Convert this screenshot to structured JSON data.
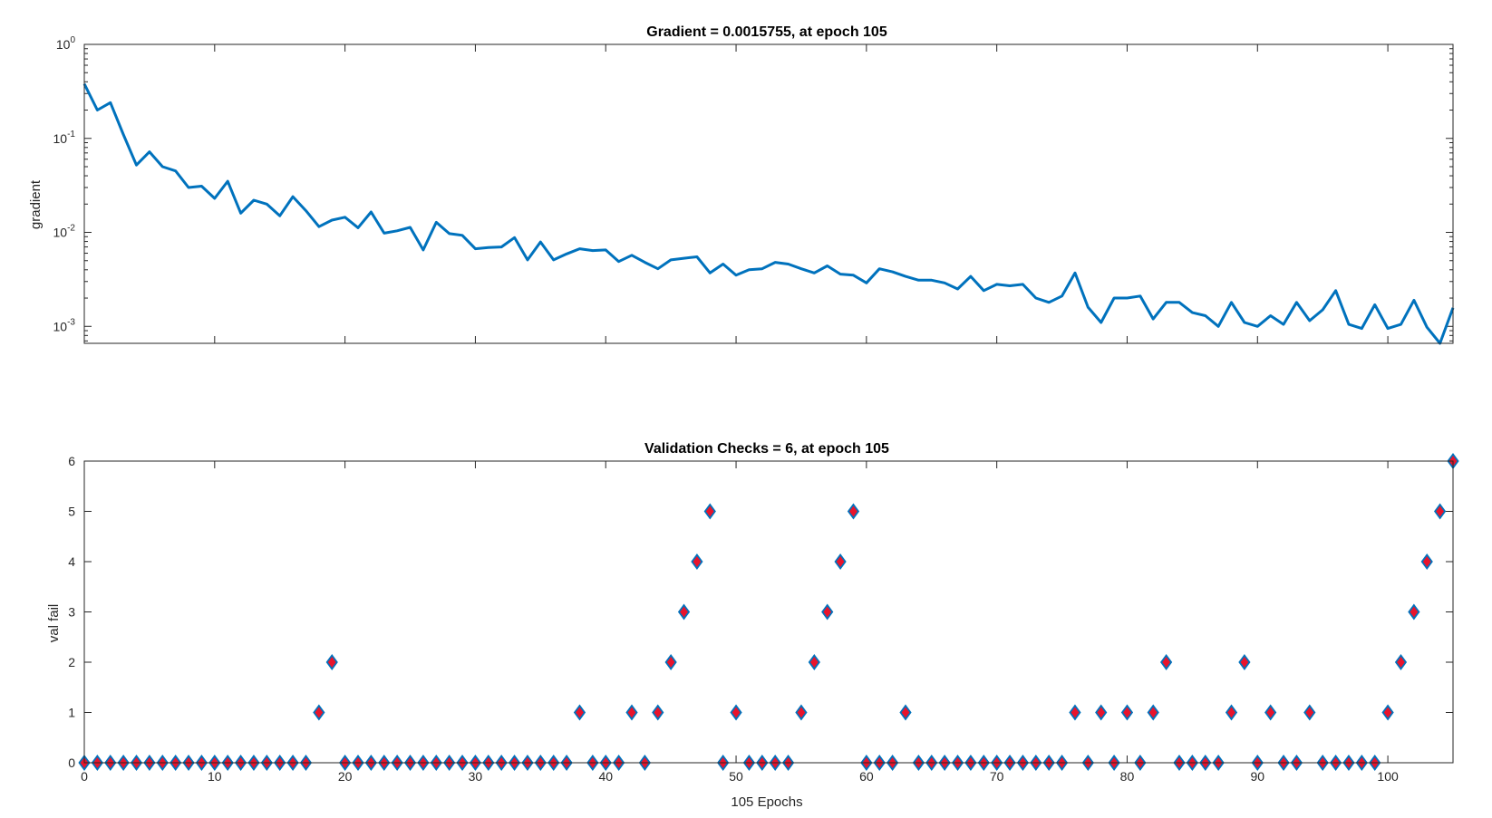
{
  "chart_data": [
    {
      "type": "line",
      "title": "Gradient = 0.0015755, at epoch 105",
      "xlabel": "",
      "ylabel": "gradient",
      "yscale": "log",
      "xlim": [
        0,
        105
      ],
      "ylim": [
        0.00066,
        1
      ],
      "ytick_labels": [
        {
          "base": "10",
          "exp": "0",
          "value": 1
        },
        {
          "base": "10",
          "exp": "-1",
          "value": 0.1
        },
        {
          "base": "10",
          "exp": "-2",
          "value": 0.01
        },
        {
          "base": "10",
          "exp": "-3",
          "value": 0.001
        }
      ],
      "line_color": "#0072BD",
      "series": [
        {
          "x": [
            0,
            1,
            2,
            3,
            4,
            5,
            6,
            7,
            8,
            9,
            10,
            11,
            12,
            13,
            14,
            15,
            16,
            17,
            18,
            19,
            20,
            21,
            22,
            23,
            24,
            25,
            26,
            27,
            28,
            29,
            30,
            31,
            32,
            33,
            34,
            35,
            36,
            37,
            38,
            39,
            40,
            41,
            42,
            43,
            44,
            45,
            46,
            47,
            48,
            49,
            50,
            51,
            52,
            53,
            54,
            55,
            56,
            57,
            58,
            59,
            60,
            61,
            62,
            63,
            64,
            65,
            66,
            67,
            68,
            69,
            70,
            71,
            72,
            73,
            74,
            75,
            76,
            77,
            78,
            79,
            80,
            81,
            82,
            83,
            84,
            85,
            86,
            87,
            88,
            89,
            90,
            91,
            92,
            93,
            94,
            95,
            96,
            97,
            98,
            99,
            100,
            101,
            102,
            103,
            104,
            105
          ],
          "values": [
            0.38,
            0.2,
            0.24,
            0.11,
            0.052,
            0.072,
            0.05,
            0.045,
            0.03,
            0.031,
            0.023,
            0.035,
            0.016,
            0.022,
            0.02,
            0.015,
            0.024,
            0.017,
            0.0115,
            0.0135,
            0.0145,
            0.0112,
            0.0165,
            0.0098,
            0.0104,
            0.0113,
            0.0065,
            0.0128,
            0.0097,
            0.0093,
            0.0067,
            0.0069,
            0.007,
            0.0088,
            0.0051,
            0.0079,
            0.0051,
            0.0059,
            0.0067,
            0.0064,
            0.0065,
            0.0049,
            0.0057,
            0.0048,
            0.0041,
            0.0051,
            0.0053,
            0.0055,
            0.0037,
            0.0046,
            0.0035,
            0.004,
            0.0041,
            0.0048,
            0.0046,
            0.0041,
            0.0037,
            0.0044,
            0.0036,
            0.0035,
            0.0029,
            0.0041,
            0.0038,
            0.0034,
            0.0031,
            0.0031,
            0.0029,
            0.0025,
            0.0034,
            0.0024,
            0.0028,
            0.0027,
            0.0028,
            0.002,
            0.0018,
            0.0021,
            0.0037,
            0.0016,
            0.0011,
            0.002,
            0.002,
            0.0021,
            0.0012,
            0.0018,
            0.0018,
            0.0014,
            0.0013,
            0.001,
            0.0018,
            0.0011,
            0.001,
            0.0013,
            0.00105,
            0.0018,
            0.00115,
            0.0015,
            0.0024,
            0.00105,
            0.00095,
            0.0017,
            0.00095,
            0.00105,
            0.0019,
            0.00098,
            0.00066,
            0.0015755
          ]
        }
      ]
    },
    {
      "type": "scatter",
      "title": "Validation Checks = 6, at epoch 105",
      "xlabel": "105 Epochs",
      "ylabel": "val fail",
      "xlim": [
        0,
        105
      ],
      "ylim": [
        0,
        6
      ],
      "xticks": [
        0,
        10,
        20,
        30,
        40,
        50,
        60,
        70,
        80,
        90,
        100
      ],
      "yticks": [
        0,
        1,
        2,
        3,
        4,
        5,
        6
      ],
      "marker": "diamond",
      "marker_fill": "#E8142C",
      "marker_edge": "#0072BD",
      "series": [
        {
          "x": [
            0,
            1,
            2,
            3,
            4,
            5,
            6,
            7,
            8,
            9,
            10,
            11,
            12,
            13,
            14,
            15,
            16,
            17,
            18,
            19,
            20,
            21,
            22,
            23,
            24,
            25,
            26,
            27,
            28,
            29,
            30,
            31,
            32,
            33,
            34,
            35,
            36,
            37,
            38,
            39,
            40,
            41,
            42,
            43,
            44,
            45,
            46,
            47,
            48,
            49,
            50,
            51,
            52,
            53,
            54,
            55,
            56,
            57,
            58,
            59,
            60,
            61,
            62,
            63,
            64,
            65,
            66,
            67,
            68,
            69,
            70,
            71,
            72,
            73,
            74,
            75,
            76,
            77,
            78,
            79,
            80,
            81,
            82,
            83,
            84,
            85,
            86,
            87,
            88,
            89,
            90,
            91,
            92,
            93,
            94,
            95,
            96,
            97,
            98,
            99,
            100,
            101,
            102,
            103,
            104,
            105
          ],
          "values": [
            0,
            0,
            0,
            0,
            0,
            0,
            0,
            0,
            0,
            0,
            0,
            0,
            0,
            0,
            0,
            0,
            0,
            0,
            1,
            2,
            0,
            0,
            0,
            0,
            0,
            0,
            0,
            0,
            0,
            0,
            0,
            0,
            0,
            0,
            0,
            0,
            0,
            0,
            1,
            0,
            0,
            0,
            1,
            0,
            1,
            2,
            3,
            4,
            5,
            0,
            1,
            0,
            0,
            0,
            0,
            1,
            2,
            3,
            4,
            5,
            0,
            0,
            0,
            1,
            0,
            0,
            0,
            0,
            0,
            0,
            0,
            0,
            0,
            0,
            0,
            0,
            1,
            0,
            1,
            0,
            1,
            0,
            1,
            2,
            0,
            0,
            0,
            0,
            1,
            2,
            0,
            1,
            0,
            0,
            1,
            0,
            0,
            0,
            0,
            0,
            1,
            2,
            3,
            4,
            5,
            6
          ]
        }
      ]
    }
  ]
}
